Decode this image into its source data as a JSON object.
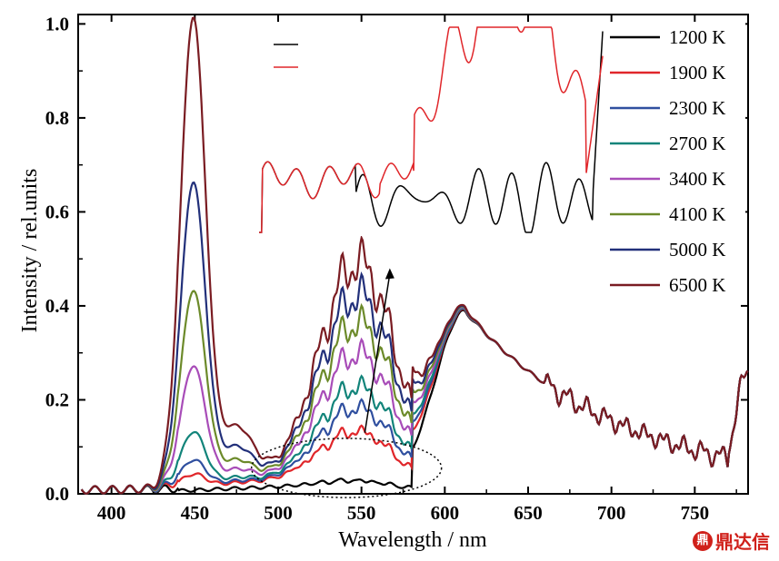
{
  "chart_data": {
    "type": "line",
    "xlabel": "Wavelength / nm",
    "ylabel": "Intensity / rel.units",
    "xlim": [
      380,
      782
    ],
    "ylim": [
      0,
      1.02
    ],
    "xticks": [
      400,
      450,
      500,
      550,
      600,
      650,
      700,
      750
    ],
    "yticks": [
      0.0,
      0.2,
      0.4,
      0.6,
      0.8,
      1.0
    ],
    "xtick_labels": [
      "400",
      "450",
      "500",
      "550",
      "600",
      "650",
      "700",
      "750"
    ],
    "ytick_labels": [
      "0.0",
      "0.2",
      "0.4",
      "0.6",
      "0.8",
      "1.0"
    ],
    "legend_position": "top-right",
    "series": [
      {
        "name": "1200 K",
        "color": "#000000",
        "blue_peak": 0.0,
        "green_peak": 0.02
      },
      {
        "name": "1900 K",
        "color": "#e0262a",
        "blue_peak": 0.03,
        "green_peak": 0.12
      },
      {
        "name": "2300 K",
        "color": "#2f4f9f",
        "blue_peak": 0.06,
        "green_peak": 0.17
      },
      {
        "name": "2700 K",
        "color": "#12847a",
        "blue_peak": 0.12,
        "green_peak": 0.215
      },
      {
        "name": "3400 K",
        "color": "#a84cb8",
        "blue_peak": 0.26,
        "green_peak": 0.285
      },
      {
        "name": "4100 K",
        "color": "#6c8a2a",
        "blue_peak": 0.42,
        "green_peak": 0.35
      },
      {
        "name": "5000 K",
        "color": "#22307a",
        "blue_peak": 0.65,
        "green_peak": 0.41
      },
      {
        "name": "6500 K",
        "color": "#7a1c22",
        "blue_peak": 1.0,
        "green_peak": 0.48
      }
    ],
    "annotations": {
      "arrow": {
        "from": [
          552,
          0.13
        ],
        "to": [
          567,
          0.48
        ]
      },
      "ellipse": {
        "center": [
          541,
          0.055
        ],
        "rx_nm": 57,
        "ry": 0.063
      }
    },
    "inset": {
      "type": "line",
      "series": [
        {
          "legend_marker_color": "#000000"
        },
        {
          "legend_marker_color": "#e0262a"
        }
      ]
    }
  },
  "watermark": {
    "text": "鼎达信",
    "logo_glyph": "鼎"
  }
}
